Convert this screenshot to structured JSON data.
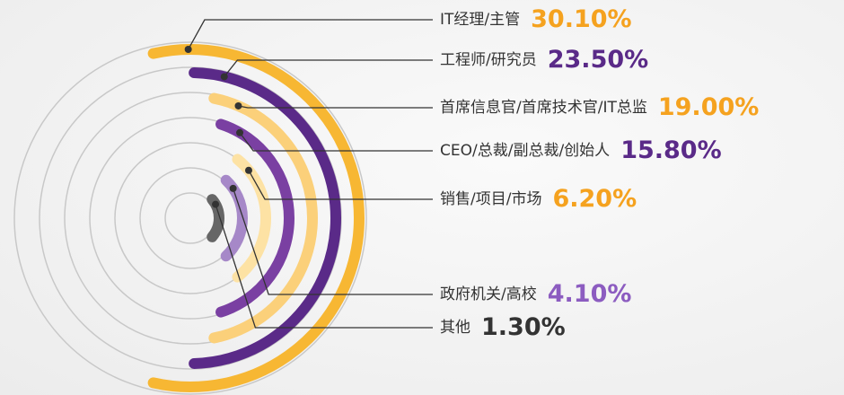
{
  "chart_data": {
    "type": "radial_bar",
    "categories": [
      "IT经理/主管",
      "工程师/研究员",
      "首席信息官/首席技术官/IT总监",
      "CEO/总裁/副总裁/创始人",
      "销售/项目/市场",
      "政府机关/高校",
      "其他"
    ],
    "values": [
      30.1,
      23.5,
      19.0,
      15.8,
      6.2,
      4.1,
      1.3
    ],
    "value_labels": [
      "30.10%",
      "23.50%",
      "19.00%",
      "15.80%",
      "6.20%",
      "4.10%",
      "1.30%"
    ],
    "colors": [
      "#f7b733",
      "#5a2a88",
      "#fbd07a",
      "#7a40a2",
      "#fde2a4",
      "#a688c8",
      "#666666"
    ],
    "label_colors": [
      "#f5a21f",
      "#5a2a88",
      "#f5a21f",
      "#5a2a88",
      "#f5a21f",
      "#8c5cc0",
      "#333333"
    ]
  }
}
